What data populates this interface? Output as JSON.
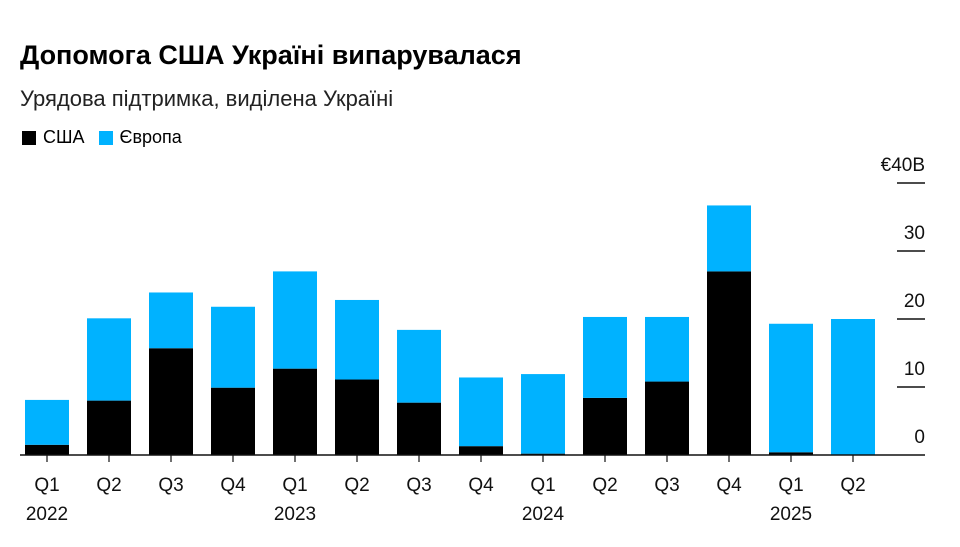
{
  "chart_data": {
    "type": "bar",
    "stacked": true,
    "title": "Допомога США Україні випарувалася",
    "subtitle": "Урядова підтримка, виділена Україні",
    "categories": [
      "Q1",
      "Q2",
      "Q3",
      "Q4",
      "Q1",
      "Q2",
      "Q3",
      "Q4",
      "Q1",
      "Q2",
      "Q3",
      "Q4",
      "Q1",
      "Q2"
    ],
    "year_labels": [
      {
        "index": 0,
        "label": "2022"
      },
      {
        "index": 4,
        "label": "2023"
      },
      {
        "index": 8,
        "label": "2024"
      },
      {
        "index": 12,
        "label": "2025"
      }
    ],
    "series": [
      {
        "name": "США",
        "color": "#000000",
        "values": [
          1.5,
          8.0,
          15.7,
          9.9,
          12.7,
          11.1,
          7.7,
          1.3,
          0.2,
          8.4,
          10.8,
          27.0,
          0.4,
          0
        ]
      },
      {
        "name": "Європа",
        "color": "#00b2ff",
        "values": [
          6.6,
          12.1,
          8.2,
          11.9,
          14.3,
          11.7,
          10.7,
          10.1,
          11.7,
          11.9,
          9.5,
          9.7,
          18.9,
          20.0
        ]
      }
    ],
    "y_ticks": [
      "0",
      "10",
      "20",
      "30",
      "€40B"
    ],
    "ylim": [
      0,
      40
    ],
    "yaxis_position": "right",
    "legend_position": "top-left",
    "grid": false
  }
}
